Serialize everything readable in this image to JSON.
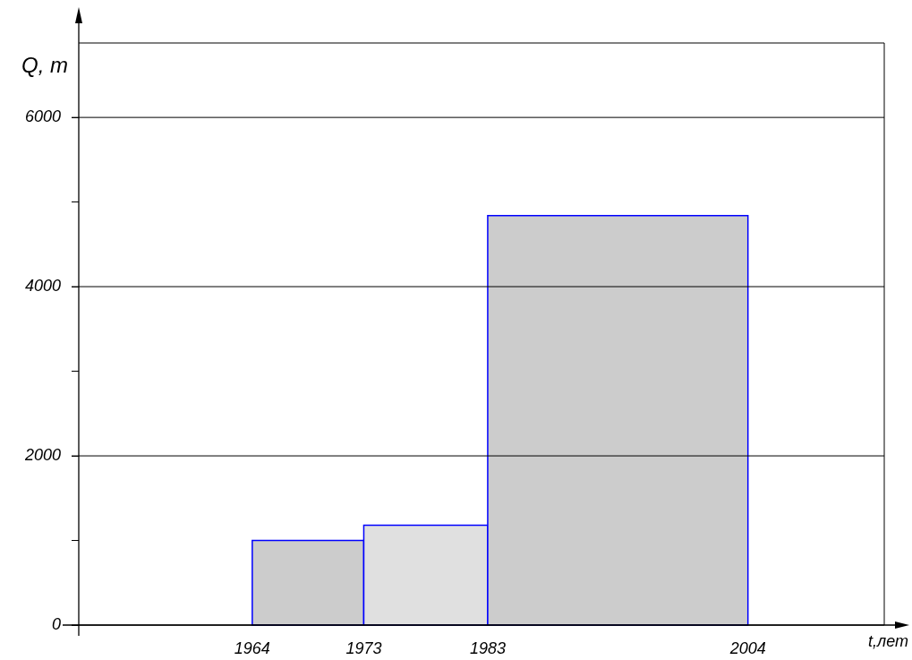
{
  "chart_data": {
    "type": "histogram",
    "bins": [
      1964,
      1973,
      1983,
      2004
    ],
    "values": [
      1000,
      1180,
      4840
    ],
    "color": "#0000ff",
    "xlabel": "t,лет",
    "ylabel": "Q, т",
    "xlim": [
      1950,
      2015
    ],
    "xticks": [
      1964,
      1973,
      1983,
      2004
    ],
    "ylim": [
      0,
      6880
    ],
    "yticks": [
      0,
      {
        "value": 1000,
        "label": null
      },
      2000,
      {
        "value": 3000,
        "label": null
      },
      4000,
      {
        "value": 5000,
        "label": null
      },
      6000
    ],
    "grid": "y"
  }
}
